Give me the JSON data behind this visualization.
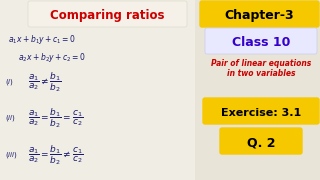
{
  "bg_color": "#e8e4d8",
  "title": "Comparing ratios",
  "title_color": "#cc0000",
  "title_bg": "#f5f0e8",
  "chapter_text": "Chapter-3",
  "chapter_bg": "#f5c800",
  "chapter_color": "#000000",
  "class_text": "Class 10",
  "class_bg": "#e8e8ff",
  "class_color": "#3300cc",
  "pair_text_1": "Pair of linear equations",
  "pair_text_2": "in two variables",
  "pair_color": "#cc0000",
  "exercise_text": "Exercise: 3.1",
  "exercise_bg": "#f5c800",
  "exercise_color": "#000000",
  "q_text": "Q. 2",
  "q_bg": "#f5c800",
  "q_color": "#000000",
  "hw_color": "#1a1a6e",
  "left_panel_bg": "#f0ede4",
  "figw": 3.2,
  "figh": 1.8,
  "dpi": 100
}
